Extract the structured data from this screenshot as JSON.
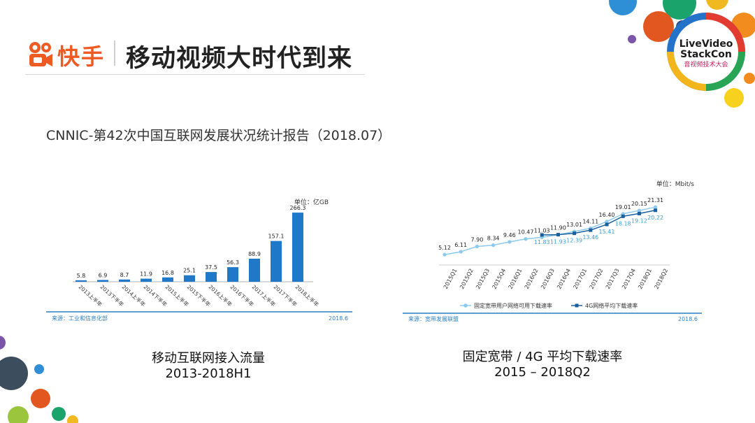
{
  "brand": {
    "logo_text": "快手"
  },
  "header": {
    "title": "移动视频大时代到来"
  },
  "subtitle": "CNNIC-第42次中国互联网发展状况统计报告（2018.07）",
  "conference_logo": {
    "line1": "LiveVideo",
    "line2": "StackCon",
    "line3": "音视频技术大会"
  },
  "left_chart": {
    "caption_line1": "移动互联网接入流量",
    "caption_line2": "2013-2018H1",
    "source": "来源：工业和信息化部",
    "date": "2018.6"
  },
  "right_chart": {
    "caption_line1": "固定宽带 / 4G 平均下载速率",
    "caption_line2": "2015 – 2018Q2",
    "source": "来源：宽带发展联盟",
    "date": "2018.6"
  },
  "colors": {
    "bar": "#1f78c8",
    "fixed_line": "#8cc9ec",
    "g4_line": "#1a5f9e",
    "label_light": "#3b9fd6",
    "brand_orange": "#ee5a24",
    "footer_line": "#2c7fc2"
  },
  "chart_data": [
    {
      "type": "bar",
      "unit": "单位：亿GB",
      "categories": [
        "2013上半年",
        "2013下半年",
        "2014上半年",
        "2014下半年",
        "2015上半年",
        "2015下半年",
        "2016上半年",
        "2016下半年",
        "2017上半年",
        "2017下半年",
        "2018上半年"
      ],
      "values": [
        5.8,
        6.9,
        8.7,
        11.9,
        16.8,
        25.1,
        37.5,
        56.3,
        88.9,
        157.1,
        266.3
      ],
      "ylim": [
        0,
        280
      ],
      "grid": false,
      "legend": "none"
    },
    {
      "type": "line",
      "unit": "单位：Mbit/s",
      "categories": [
        "2015Q1",
        "2015Q2",
        "2015Q3",
        "2015Q4",
        "2016Q1",
        "2016Q2",
        "2016Q3",
        "2016Q4",
        "2017Q1",
        "2017Q2",
        "2017Q3",
        "2017Q4",
        "2018Q1",
        "2018Q2"
      ],
      "series": [
        {
          "name": "固定宽带用户网络可用下载速率",
          "values": [
            5.12,
            6.11,
            7.9,
            8.34,
            9.46,
            10.47,
            11.03,
            11.9,
            13.01,
            14.11,
            16.4,
            19.01,
            20.15,
            21.31
          ]
        },
        {
          "name": "4G网络平均下载速率",
          "values": [
            null,
            null,
            null,
            null,
            null,
            null,
            11.83,
            11.93,
            12.39,
            13.46,
            15.41,
            18.18,
            19.12,
            20.22
          ]
        }
      ],
      "ylim": [
        0,
        25
      ],
      "grid": false,
      "legend": "bottom"
    }
  ]
}
